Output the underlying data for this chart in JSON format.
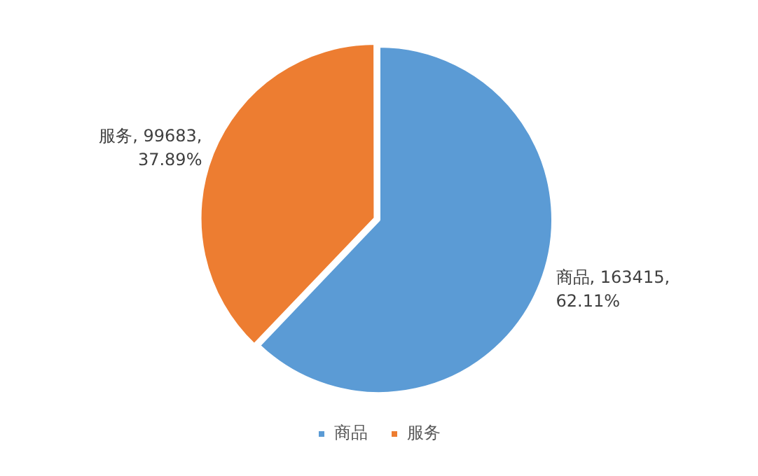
{
  "chart_data": {
    "type": "pie",
    "categories": [
      "商品",
      "服务"
    ],
    "values": [
      163415,
      99683
    ],
    "colors": [
      "#5b9bd5",
      "#ed7d31"
    ],
    "value_labels": [
      "商品, 163415,\n62.11%",
      "服务, 99683,\n37.89%"
    ],
    "legend": "bottom"
  }
}
